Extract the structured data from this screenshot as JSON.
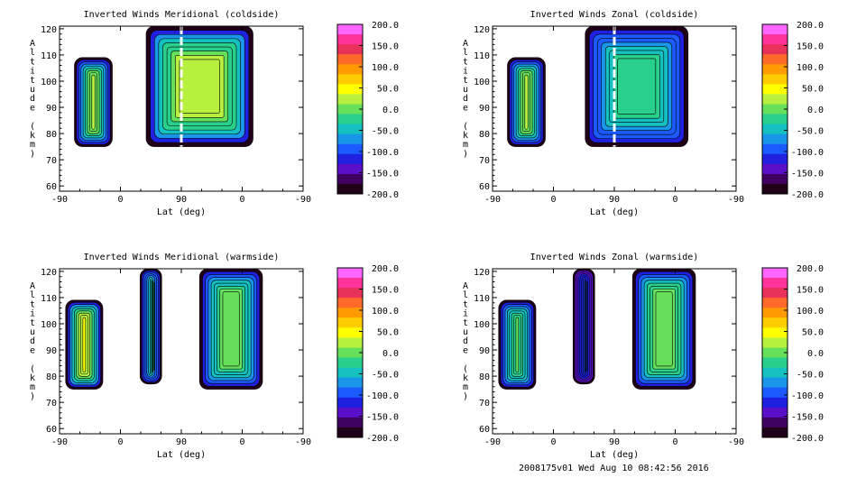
{
  "colorbar": {
    "ticks": [
      "200.0",
      "150.0",
      "100.0",
      "50.0",
      "0.0",
      "-50.0",
      "-100.0",
      "-150.0",
      "-200.0"
    ],
    "range": [
      -200,
      200
    ],
    "colors": [
      "#ff66ff",
      "#ff3399",
      "#e8325a",
      "#ff6a2a",
      "#ff9a00",
      "#ffcc00",
      "#ffff00",
      "#b8f040",
      "#66e05a",
      "#28d08c",
      "#14c0c0",
      "#1a96e8",
      "#1a5aff",
      "#2020e0",
      "#5a10c8",
      "#400060",
      "#200018"
    ]
  },
  "footer": "2008175v01 Wed Aug 10 08:42:56 2016",
  "chart_data": [
    {
      "type": "heatmap",
      "title": "Inverted Winds Meridional (coldside)",
      "xlabel": "Lat (deg)",
      "ylabel": "Altitude (km)",
      "xticks": [
        "-90",
        "0",
        "90",
        "0",
        "-90"
      ],
      "yticks": [
        "120",
        "110",
        "100",
        "90",
        "80",
        "70",
        "60"
      ],
      "ylim": [
        58,
        121
      ],
      "zlim": [
        -200,
        200
      ],
      "regions": [
        {
          "x": [
            -68,
            -12
          ],
          "y": [
            75,
            109
          ],
          "core_value": 20,
          "edge_value": -180,
          "gaps": []
        },
        {
          "x": [
            38,
            196
          ],
          "y": [
            75,
            121
          ],
          "core_value": 35,
          "edge_value": -180,
          "gaps": [
            90
          ]
        }
      ]
    },
    {
      "type": "heatmap",
      "title": "Inverted Winds Zonal (coldside)",
      "xlabel": "Lat (deg)",
      "ylabel": "Altitude (km)",
      "xticks": [
        "-90",
        "0",
        "90",
        "0",
        "-90"
      ],
      "yticks": [
        "120",
        "110",
        "100",
        "90",
        "80",
        "70",
        "60"
      ],
      "ylim": [
        58,
        121
      ],
      "zlim": [
        -200,
        200
      ],
      "regions": [
        {
          "x": [
            -68,
            -12
          ],
          "y": [
            75,
            109
          ],
          "core_value": 25,
          "edge_value": -180,
          "gaps": []
        },
        {
          "x": [
            47,
            199
          ],
          "y": [
            75,
            121
          ],
          "core_value": -15,
          "edge_value": -180,
          "gaps": [
            90
          ]
        }
      ]
    },
    {
      "type": "heatmap",
      "title": "Inverted Winds Meridional (warmside)",
      "xlabel": "Lat (deg)",
      "ylabel": "Altitude (km)",
      "xticks": [
        "-90",
        "0",
        "90",
        "0",
        "-90"
      ],
      "yticks": [
        "120",
        "110",
        "100",
        "90",
        "80",
        "70",
        "60"
      ],
      "ylim": [
        58,
        121
      ],
      "zlim": [
        -200,
        200
      ],
      "regions": [
        {
          "x": [
            -81,
            -26
          ],
          "y": [
            75,
            109
          ],
          "core_value": 45,
          "edge_value": -180,
          "gaps": []
        },
        {
          "x": [
            29,
            61
          ],
          "y": [
            77,
            121
          ],
          "core_value": -20,
          "edge_value": -180,
          "gaps": []
        },
        {
          "x": [
            117,
            210
          ],
          "y": [
            75,
            121
          ],
          "core_value": 5,
          "edge_value": -180,
          "gaps": []
        }
      ]
    },
    {
      "type": "heatmap",
      "title": "Inverted Winds Zonal (warmside)",
      "xlabel": "Lat (deg)",
      "ylabel": "Altitude (km)",
      "xticks": [
        "-90",
        "0",
        "90",
        "0",
        "-90"
      ],
      "yticks": [
        "120",
        "110",
        "100",
        "90",
        "80",
        "70",
        "60"
      ],
      "ylim": [
        58,
        121
      ],
      "zlim": [
        -200,
        200
      ],
      "regions": [
        {
          "x": [
            -81,
            -26
          ],
          "y": [
            75,
            109
          ],
          "core_value": 0,
          "edge_value": -180,
          "gaps": []
        },
        {
          "x": [
            29,
            61
          ],
          "y": [
            77,
            121
          ],
          "core_value": -90,
          "edge_value": -180,
          "gaps": []
        },
        {
          "x": [
            117,
            210
          ],
          "y": [
            75,
            121
          ],
          "core_value": 10,
          "edge_value": -180,
          "gaps": []
        }
      ]
    }
  ]
}
